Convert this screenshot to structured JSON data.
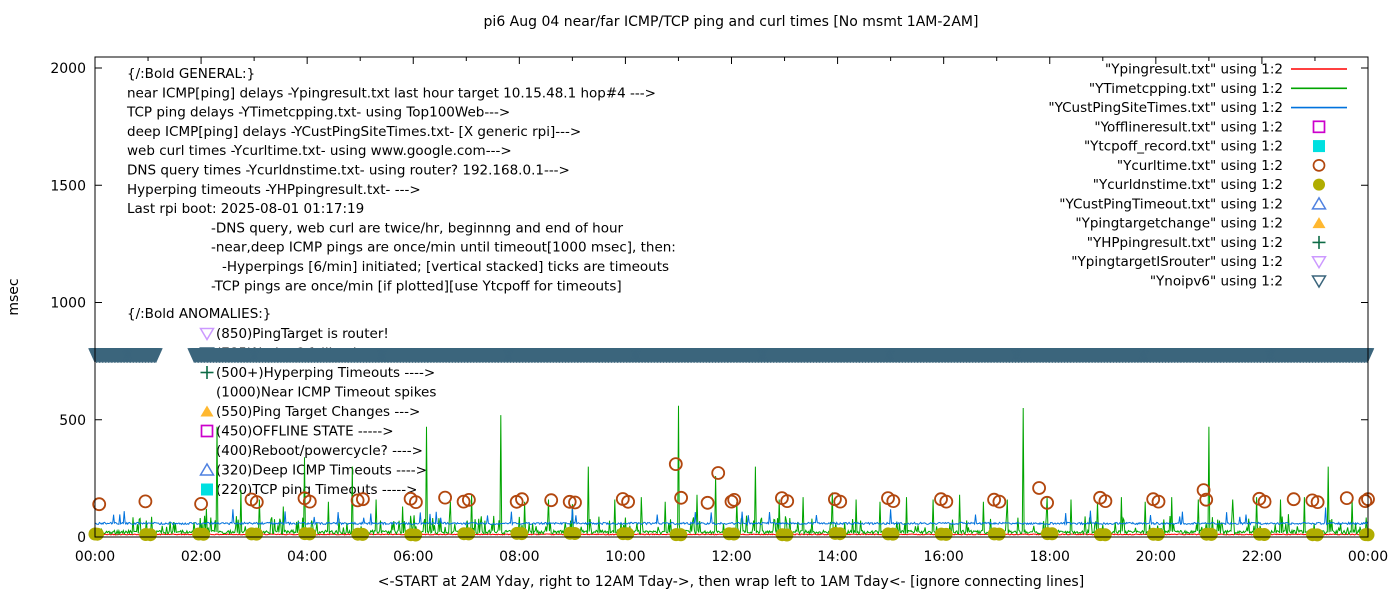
{
  "chart_data": {
    "type": "line",
    "title": "pi6 Aug 04  near/far ICMP/TCP ping and curl times [No msmt 1AM-2AM]",
    "ylabel": "msec",
    "footer": "<-START at 2AM Yday, right to 12AM Tday->, then wrap left to 1AM Tday<- [ignore connecting lines]",
    "xlim_hours": [
      0,
      24
    ],
    "ylim": [
      0,
      2046
    ],
    "y_ticks": [
      0,
      500,
      1000,
      1500,
      2000
    ],
    "x_tick_labels": [
      "00:00",
      "02:00",
      "04:00",
      "06:00",
      "08:00",
      "10:00",
      "12:00",
      "14:00",
      "16:00",
      "18:00",
      "20:00",
      "22:00",
      "00:00"
    ],
    "grid": false,
    "legend_position": "top-right",
    "legend": [
      {
        "label": "\"Ypingresult.txt\" using 1:2",
        "sample": "line",
        "color": "#ff0000"
      },
      {
        "label": "\"YTimetcpping.txt\" using 1:2",
        "sample": "line",
        "color": "#00a400"
      },
      {
        "label": "\"YCustPingSiteTimes.txt\" using 1:2",
        "sample": "line",
        "color": "#0072dd"
      },
      {
        "label": "\"Yofflineresult.txt\" using 1:2",
        "sample": "square-open",
        "color": "#cc00cc"
      },
      {
        "label": "\"Ytcpoff_record.txt\" using 1:2",
        "sample": "square-filled",
        "color": "#00e0e0"
      },
      {
        "label": "\"Ycurltime.txt\" using 1:2",
        "sample": "circle-open",
        "color": "#b2470e"
      },
      {
        "label": "\"Ycurldnstime.txt\" using 1:2",
        "sample": "circle-filled",
        "color": "#b0ad00"
      },
      {
        "label": "\"YCustPingTimeout.txt\" using 1:2",
        "sample": "triangle-up-open",
        "color": "#4f81e0"
      },
      {
        "label": "\"Ypingtargetchange\" using 1:2",
        "sample": "triangle-up-filled",
        "color": "#ffb830"
      },
      {
        "label": "\"YHPpingresult.txt\" using 1:2",
        "sample": "plus",
        "color": "#0d6b45"
      },
      {
        "label": "\"YpingtargetISrouter\" using 1:2",
        "sample": "triangle-down-open",
        "color": "#cc99ff"
      },
      {
        "label": "\"Ynoipv6\" using 1:2",
        "sample": "triangle-down-open",
        "color": "#3b657c"
      }
    ],
    "general_notes": [
      {
        "text": "{/:Bold GENERAL:}",
        "indent": 0
      },
      {
        "text": "near ICMP[ping] delays -Ypingresult.txt last hour target 10.15.48.1 hop#4 --->",
        "indent": 0
      },
      {
        "text": "TCP ping delays -YTimetcpping.txt- using Top100Web--->",
        "indent": 0
      },
      {
        "text": "deep ICMP[ping] delays -YCustPingSiteTimes.txt- [X generic rpi]--->",
        "indent": 0
      },
      {
        "text": "web curl times -Ycurltime.txt- using www.google.com--->",
        "indent": 0
      },
      {
        "text": "DNS query times -Ycurldnstime.txt- using router? 192.168.0.1--->",
        "indent": 0
      },
      {
        "text": "Hyperping timeouts -YHPpingresult.txt- --->",
        "indent": 0
      },
      {
        "text": "Last rpi boot: 2025-08-01 01:17:19",
        "indent": 0
      },
      {
        "text": "-DNS query, web curl are twice/hr, beginnng and end of hour",
        "indent": 1
      },
      {
        "text": "-near,deep ICMP pings are once/min until timeout[1000 msec], then:",
        "indent": 1
      },
      {
        "text": "-Hyperpings [6/min] initiated; [vertical stacked] ticks are timeouts",
        "indent": 2
      },
      {
        "text": "-TCP pings are once/min [if plotted][use Ytcpoff for timeouts]",
        "indent": 1
      }
    ],
    "anomalies": [
      {
        "text": "{/:Bold ANOMALIES:}",
        "marker": null,
        "color": null
      },
      {
        "text": "(850)PingTarget is router!",
        "marker": "triangle-down-open",
        "color": "#cc99ff"
      },
      {
        "text": "(785)No ipv6 fallback",
        "marker": "triangle-down-open",
        "color": "#3b657c",
        "obscured_by_band": true
      },
      {
        "text": "(500+)Hyperping Timeouts ---->",
        "marker": "plus",
        "color": "#0d6b45"
      },
      {
        "text": "(1000)Near ICMP Timeout spikes",
        "marker": null,
        "color": null
      },
      {
        "text": "(550)Ping Target Changes --->",
        "marker": "triangle-up-filled",
        "color": "#ffb830"
      },
      {
        "text": "(450)OFFLINE STATE ----->",
        "marker": "square-open",
        "color": "#cc00cc"
      },
      {
        "text": "(400)Reboot/powercycle? ---->",
        "marker": null,
        "color": null
      },
      {
        "text": "(320)Deep ICMP Timeouts ---->",
        "marker": "triangle-up-open",
        "color": "#4f81e0"
      },
      {
        "text": "(220)TCP ping Timeouts ----->",
        "marker": "square-filled",
        "color": "#00e0e0"
      }
    ],
    "no_measurement_window_hours": [
      1.15,
      1.87
    ],
    "seed": 42,
    "series": {
      "near_icmp": {
        "file": "Ypingresult.txt",
        "color": "#ff0000",
        "baseline_msec": 11,
        "noise_msec": 4
      },
      "tcp_ping": {
        "file": "YTimetcpping.txt",
        "color": "#00a400",
        "baseline_msec": 20,
        "noise_msec": 30,
        "spikes": [
          [
            2.1,
            120
          ],
          [
            2.3,
            470
          ],
          [
            2.75,
            200
          ],
          [
            3.1,
            160
          ],
          [
            3.55,
            130
          ],
          [
            3.95,
            340
          ],
          [
            4.4,
            150
          ],
          [
            4.85,
            300
          ],
          [
            5.3,
            160
          ],
          [
            5.8,
            130
          ],
          [
            6.25,
            470
          ],
          [
            6.7,
            150
          ],
          [
            7.1,
            180
          ],
          [
            7.65,
            520
          ],
          [
            8.1,
            150
          ],
          [
            8.55,
            160
          ],
          [
            9.0,
            140
          ],
          [
            9.3,
            300
          ],
          [
            9.8,
            160
          ],
          [
            10.3,
            170
          ],
          [
            10.75,
            150
          ],
          [
            11.0,
            560
          ],
          [
            11.35,
            180
          ],
          [
            11.7,
            260
          ],
          [
            12.1,
            150
          ],
          [
            12.45,
            300
          ],
          [
            12.9,
            160
          ],
          [
            13.35,
            170
          ],
          [
            13.9,
            190
          ],
          [
            14.35,
            160
          ],
          [
            14.8,
            150
          ],
          [
            15.3,
            170
          ],
          [
            15.8,
            160
          ],
          [
            16.3,
            180
          ],
          [
            16.75,
            150
          ],
          [
            17.2,
            160
          ],
          [
            17.5,
            550
          ],
          [
            17.95,
            170
          ],
          [
            18.4,
            160
          ],
          [
            18.9,
            150
          ],
          [
            19.35,
            170
          ],
          [
            19.8,
            150
          ],
          [
            20.3,
            170
          ],
          [
            20.8,
            160
          ],
          [
            21.0,
            470
          ],
          [
            21.45,
            160
          ],
          [
            21.9,
            170
          ],
          [
            22.35,
            160
          ],
          [
            22.8,
            170
          ],
          [
            23.25,
            300
          ],
          [
            23.7,
            160
          ]
        ]
      },
      "deep_icmp": {
        "file": "YCustPingSiteTimes.txt",
        "color": "#0072dd",
        "baseline_msec": 60,
        "noise_msec": 9,
        "spikes": [
          [
            0.35,
            95
          ],
          [
            2.6,
            118
          ],
          [
            5.2,
            100
          ],
          [
            7.4,
            92
          ],
          [
            9.0,
            128
          ],
          [
            10.6,
            96
          ],
          [
            12.2,
            108
          ],
          [
            13.6,
            94
          ],
          [
            15.0,
            118
          ],
          [
            16.6,
            96
          ],
          [
            18.3,
            102
          ],
          [
            19.9,
            94
          ],
          [
            20.5,
            108
          ],
          [
            21.7,
            96
          ],
          [
            23.2,
            126
          ]
        ]
      },
      "web_curl": {
        "file": "Ycurltime.txt",
        "color": "#b2470e",
        "points": [
          [
            0.08,
            140
          ],
          [
            0.95,
            152
          ],
          [
            2.0,
            141
          ],
          [
            2.95,
            160
          ],
          [
            3.05,
            149
          ],
          [
            3.95,
            165
          ],
          [
            4.05,
            151
          ],
          [
            4.95,
            156
          ],
          [
            5.05,
            161
          ],
          [
            5.95,
            163
          ],
          [
            6.05,
            149
          ],
          [
            6.6,
            168
          ],
          [
            6.95,
            151
          ],
          [
            7.05,
            158
          ],
          [
            7.95,
            150
          ],
          [
            8.05,
            161
          ],
          [
            8.6,
            157
          ],
          [
            8.95,
            150
          ],
          [
            9.05,
            147
          ],
          [
            9.95,
            162
          ],
          [
            10.05,
            150
          ],
          [
            10.95,
            311
          ],
          [
            11.05,
            167
          ],
          [
            11.55,
            146
          ],
          [
            11.75,
            273
          ],
          [
            12.0,
            151
          ],
          [
            12.05,
            158
          ],
          [
            12.95,
            166
          ],
          [
            13.05,
            153
          ],
          [
            13.95,
            161
          ],
          [
            14.05,
            151
          ],
          [
            14.95,
            166
          ],
          [
            15.05,
            153
          ],
          [
            15.95,
            161
          ],
          [
            16.05,
            151
          ],
          [
            16.95,
            159
          ],
          [
            17.05,
            151
          ],
          [
            17.8,
            209
          ],
          [
            17.95,
            146
          ],
          [
            18.95,
            167
          ],
          [
            19.05,
            153
          ],
          [
            19.95,
            161
          ],
          [
            20.05,
            151
          ],
          [
            20.9,
            200
          ],
          [
            20.95,
            159
          ],
          [
            21.95,
            163
          ],
          [
            22.05,
            151
          ],
          [
            22.6,
            161
          ],
          [
            22.95,
            156
          ],
          [
            23.05,
            149
          ],
          [
            23.6,
            166
          ],
          [
            23.95,
            153
          ],
          [
            24.0,
            161
          ]
        ]
      },
      "dns_query": {
        "file": "Ycurldnstime.txt",
        "color": "#b0ad00",
        "hours": [
          0,
          1,
          2,
          3,
          4,
          5,
          6,
          7,
          8,
          9,
          10,
          11,
          12,
          13,
          14,
          15,
          16,
          17,
          18,
          19,
          20,
          21,
          22,
          23,
          24
        ],
        "typical_value_msec": 12
      },
      "noipv6": {
        "file": "Ynoipv6",
        "color": "#3b657c",
        "value_msec": 785,
        "segments_hours": [
          [
            0,
            1.15
          ],
          [
            1.87,
            24
          ]
        ]
      }
    }
  }
}
